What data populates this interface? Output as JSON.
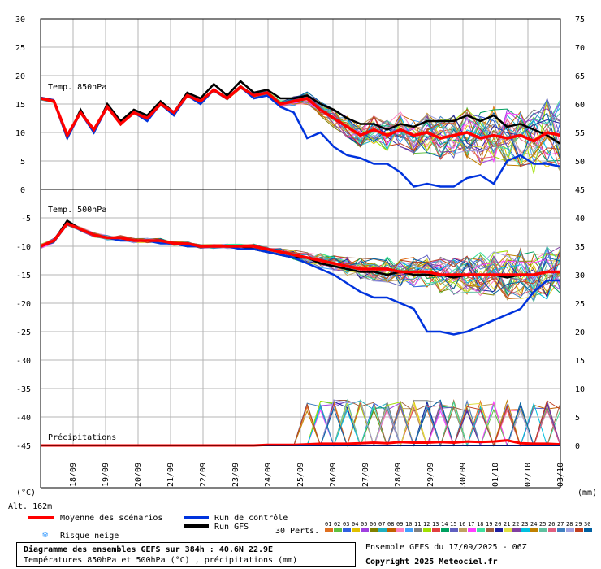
{
  "chart_data": {
    "type": "line",
    "x_dates": [
      "18/09",
      "19/09",
      "20/09",
      "21/09",
      "22/09",
      "23/09",
      "24/09",
      "25/09",
      "26/09",
      "27/09",
      "28/09",
      "29/09",
      "30/09",
      "01/10",
      "02/10",
      "03/10"
    ],
    "upper_panel": {
      "label": "Temp. 850hPa",
      "yticks_left": [
        "30",
        "25",
        "20",
        "15",
        "10",
        "5",
        "0"
      ],
      "yticks_right": [
        "75",
        "70",
        "65",
        "60",
        "55",
        "50",
        "45"
      ],
      "ylim": [
        0,
        30
      ],
      "mean": [
        16,
        15.5,
        9.5,
        13.5,
        10.5,
        14.5,
        11.5,
        13.5,
        12.5,
        15,
        13.5,
        16.5,
        15.5,
        17.5,
        16,
        18,
        16.5,
        17,
        15,
        15.5,
        16,
        14,
        12.5,
        11,
        9.5,
        10.5,
        9.5,
        10.5,
        9.5,
        10,
        9,
        9.5,
        10,
        9,
        9.5,
        9,
        9.5,
        8.5,
        10,
        9.5
      ],
      "gfs": [
        16,
        15.5,
        9,
        14,
        10,
        15,
        12,
        14,
        13,
        15.5,
        13.5,
        17,
        16,
        18.5,
        16.5,
        19,
        17,
        17.5,
        16,
        16,
        16.5,
        15,
        14,
        12.5,
        11.5,
        11.5,
        10.5,
        11.5,
        11,
        12,
        12,
        12,
        13,
        12,
        13,
        11,
        11.5,
        10.5,
        9.5,
        8
      ],
      "control": [
        16,
        15.5,
        9,
        13.5,
        10,
        14.5,
        11.5,
        13.5,
        12,
        15,
        13,
        16.5,
        15,
        17.5,
        16,
        18,
        16,
        16.5,
        14.5,
        13.5,
        9,
        10,
        7.5,
        6,
        5.5,
        4.5,
        4.5,
        3,
        0.5,
        1,
        0.5,
        0.5,
        2,
        2.5,
        1,
        5,
        6,
        4.5,
        4.5,
        4
      ]
    },
    "lower_panel": {
      "temp_label": "Temp. 500hPa",
      "precip_label": "Précipitations",
      "yticks_left": [
        "-5",
        "-10",
        "-15",
        "-20",
        "-25",
        "-30",
        "-35",
        "-40",
        "-45"
      ],
      "yticks_right": [
        "40",
        "35",
        "30",
        "25",
        "20",
        "15",
        "10",
        "5",
        "0"
      ],
      "ylim": [
        -45,
        0
      ],
      "mean": [
        -10,
        -9,
        -6,
        -7,
        -8,
        -8.5,
        -8.5,
        -9,
        -9,
        -9,
        -9.5,
        -9.5,
        -10,
        -10,
        -10,
        -10,
        -10,
        -10.5,
        -11,
        -11.5,
        -12,
        -12.5,
        -13,
        -13.5,
        -14,
        -14,
        -14,
        -14.5,
        -14.5,
        -14.5,
        -15,
        -15,
        -15,
        -15,
        -15,
        -15,
        -15,
        -15,
        -14.5,
        -14.5
      ],
      "gfs": [
        -10,
        -9,
        -5.5,
        -7,
        -8,
        -8.5,
        -8.5,
        -9,
        -9,
        -9,
        -9.5,
        -10,
        -10,
        -10,
        -10,
        -10,
        -10.5,
        -11,
        -11.5,
        -12,
        -12,
        -13,
        -13.5,
        -14,
        -14.5,
        -14.5,
        -15,
        -14.5,
        -15,
        -15,
        -15,
        -15.5,
        -15,
        -15,
        -15,
        -15.5,
        -15,
        -15,
        -14.5,
        -14.5
      ],
      "control": [
        -10,
        -9,
        -6,
        -7,
        -8,
        -8.5,
        -9,
        -9,
        -9,
        -9.5,
        -9.5,
        -10,
        -10,
        -10,
        -10,
        -10.5,
        -10.5,
        -11,
        -11.5,
        -12,
        -13,
        -14,
        -15,
        -16.5,
        -18,
        -19,
        -19,
        -20,
        -21,
        -25,
        -25,
        -25.5,
        -25,
        -24,
        -23,
        -22,
        -21,
        -18,
        -16,
        -16
      ],
      "precip_mean_mm": [
        0,
        0,
        0,
        0,
        0,
        0,
        0,
        0,
        0,
        0,
        0,
        0,
        0,
        0,
        0,
        0,
        0,
        0.1,
        0.1,
        0.1,
        0.2,
        0.3,
        0.3,
        0.3,
        0.4,
        0.5,
        0.4,
        0.6,
        0.5,
        0.5,
        0.6,
        0.5,
        0.7,
        0.6,
        0.7,
        0.9,
        0.4,
        0.3,
        0.3,
        0.2
      ],
      "precip_gfs_mm": [
        0,
        0,
        0,
        0,
        0,
        0,
        0,
        0,
        0,
        0,
        0,
        0,
        0,
        0,
        0,
        0,
        0,
        0,
        0,
        0,
        0,
        0,
        0,
        0,
        0,
        0,
        0,
        0,
        0,
        0,
        0,
        0,
        0,
        0,
        0,
        0,
        0,
        0,
        0,
        0
      ],
      "precip_control_mm": [
        0,
        0,
        0,
        0,
        0,
        0,
        0,
        0,
        0,
        0,
        0,
        0,
        0,
        0,
        0,
        0,
        0,
        0,
        0,
        0,
        0,
        0,
        0,
        0,
        0,
        0,
        0,
        0,
        0,
        0,
        0,
        0,
        0,
        0,
        0,
        0,
        0,
        0,
        0,
        0
      ]
    },
    "units_left": "(°C)",
    "units_right": "(mm)",
    "legend": {
      "mean": "Moyenne des scénarios",
      "control": "Run de contrôle",
      "gfs": "Run GFS",
      "snow": "Risque neige",
      "perts_label": "30 Perts.",
      "perts": [
        "01",
        "02",
        "03",
        "04",
        "05",
        "06",
        "07",
        "08",
        "09",
        "10",
        "11",
        "12",
        "13",
        "14",
        "15",
        "16",
        "17",
        "18",
        "19",
        "20",
        "21",
        "22",
        "23",
        "24",
        "25",
        "26",
        "27",
        "28",
        "29",
        "30"
      ]
    },
    "colors": {
      "mean": "#ff0000",
      "control": "#0033dd",
      "gfs": "#000000",
      "grid": "#b4b4b4",
      "perts": [
        "#e07020",
        "#60c040",
        "#3060e0",
        "#e0c000",
        "#a040e0",
        "#808000",
        "#20b0c0",
        "#c06000",
        "#ff80c0",
        "#40a0ff",
        "#808080",
        "#a0e000",
        "#e04040",
        "#00a060",
        "#6060c0",
        "#c0a060",
        "#ff40ff",
        "#40e0a0",
        "#a06040",
        "#2020a0",
        "#e0e040",
        "#8040a0",
        "#00c0e0",
        "#c08000",
        "#60c0a0",
        "#e06080",
        "#4080c0",
        "#a0a0e0",
        "#c04020",
        "#0060a0"
      ]
    }
  },
  "footer": {
    "elevation": "Alt. 162m",
    "title": "Diagramme des ensembles GEFS sur 384h : 40.6N 22.9E",
    "subtitle": "Températures 850hPa et 500hPa (°C) , précipitations (mm)",
    "run": "Ensemble GEFS du 17/09/2025 - 06Z",
    "copyright": "Copyright 2025 Meteociel.fr"
  }
}
